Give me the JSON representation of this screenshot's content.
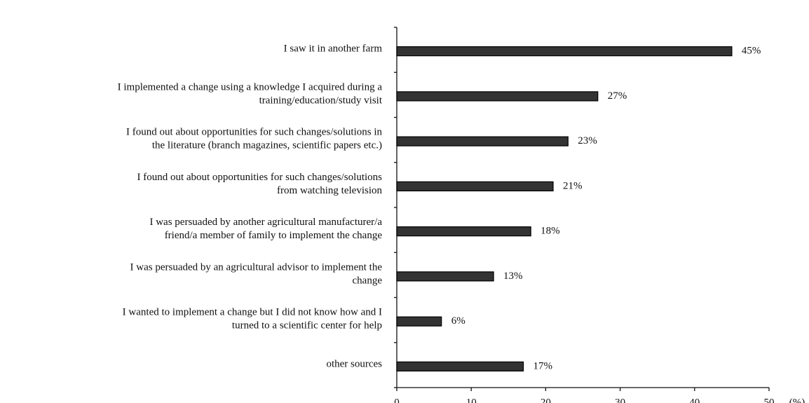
{
  "chart_data": {
    "type": "bar",
    "orientation": "horizontal",
    "categories": [
      [
        "I saw it in another farm"
      ],
      [
        "I implemented a change using a knowledge I acquired during a",
        "training/education/study visit"
      ],
      [
        "I found out about opportunities for such changes/solutions in",
        "the literature (branch magazines, scientific papers etc.)"
      ],
      [
        "I found out about opportunities for such changes/solutions",
        "from watching television"
      ],
      [
        "I was persuaded by another agricultural manufacturer/a",
        "friend/a member of family to implement the change"
      ],
      [
        "I was persuaded by an agricultural advisor to implement the",
        "change"
      ],
      [
        "I wanted to implement a change but I did not know how and I",
        "turned to a scientific center for help"
      ],
      [
        "other sources"
      ]
    ],
    "values": [
      45,
      27,
      23,
      21,
      18,
      13,
      6,
      17
    ],
    "value_labels": [
      "45%",
      "27%",
      "23%",
      "21%",
      "18%",
      "13%",
      "6%",
      "17%"
    ],
    "color": "#333333",
    "xlabel": "(%)",
    "xlim": [
      0,
      50
    ],
    "xticks": [
      0,
      10,
      20,
      30,
      40,
      50
    ]
  }
}
